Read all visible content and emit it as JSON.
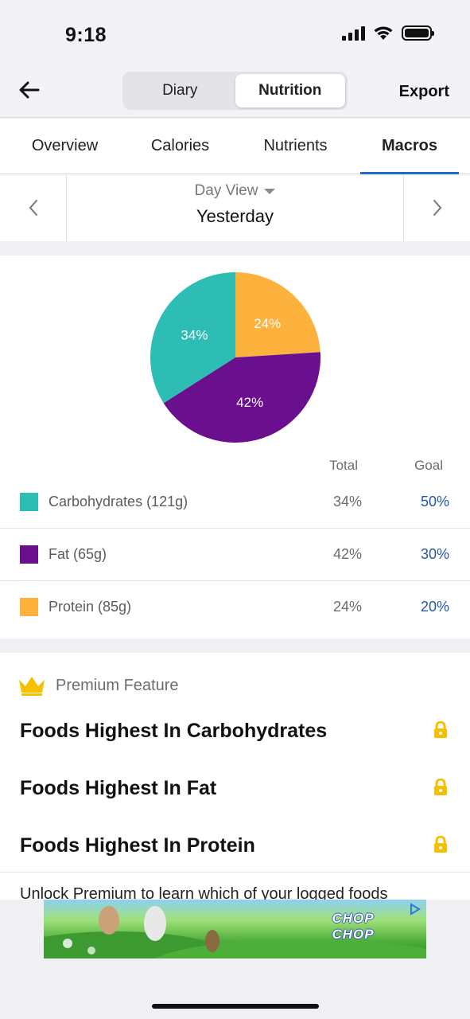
{
  "status": {
    "time": "9:18"
  },
  "nav": {
    "segments": [
      "Diary",
      "Nutrition"
    ],
    "active_segment": "Nutrition",
    "export_label": "Export"
  },
  "tabs": [
    {
      "label": "Overview"
    },
    {
      "label": "Calories"
    },
    {
      "label": "Nutrients"
    },
    {
      "label": "Macros"
    }
  ],
  "active_tab": "Macros",
  "day": {
    "view_label": "Day View",
    "current": "Yesterday"
  },
  "table": {
    "total_header": "Total",
    "goal_header": "Goal"
  },
  "macros": [
    {
      "name": "Carbohydrates (121g)",
      "total": "34%",
      "goal": "50%",
      "color": "#2ebdb4"
    },
    {
      "name": "Fat (65g)",
      "total": "42%",
      "goal": "30%",
      "color": "#6a0f8e"
    },
    {
      "name": "Protein (85g)",
      "total": "24%",
      "goal": "20%",
      "color": "#fdb23e"
    }
  ],
  "chart_data": {
    "type": "pie",
    "categories": [
      "Protein",
      "Fat",
      "Carbohydrates"
    ],
    "values": [
      24,
      42,
      34
    ],
    "labels": [
      "24%",
      "42%",
      "34%"
    ],
    "colors": [
      "#fdb23e",
      "#6a0f8e",
      "#2ebdb4"
    ]
  },
  "premium": {
    "label": "Premium Feature",
    "items": [
      {
        "title": "Foods Highest In Carbohydrates"
      },
      {
        "title": "Foods Highest In Fat"
      },
      {
        "title": "Foods Highest In Protein"
      }
    ],
    "unlock_text": "Unlock Premium to learn which of your logged foods"
  },
  "ad": {
    "title": "CHOP CHOP"
  },
  "colors": {
    "accent": "#1a6dcc",
    "goal_text": "#2358a8",
    "crown": "#f5c000",
    "lock": "#f5c000"
  }
}
